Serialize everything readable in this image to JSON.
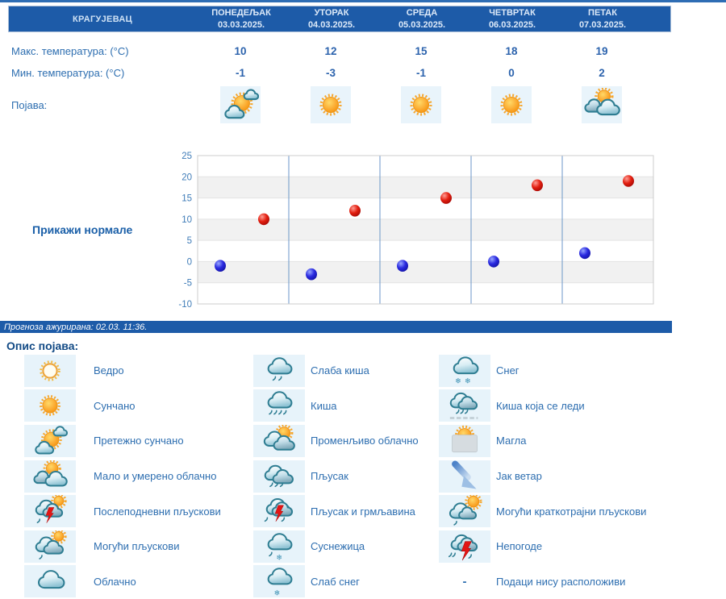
{
  "colors": {
    "header_bg": "#1d5ba8",
    "top_line": "#2e6db4",
    "text_blue": "#2d6eb0",
    "link_blue": "#1a5fa8",
    "legend_title_blue": "#124a85",
    "icon_box_bg": "#e9f4fb",
    "legend_icon_bg": "#e7f3fa",
    "max_dot": "#cc1100",
    "min_dot": "#2222cc",
    "chart_band_gray": "#f1f1f1",
    "chart_divider_blue": "#6b96c8"
  },
  "forecast": {
    "station": "КРАГУЈЕВАЦ",
    "days": [
      {
        "name": "ПОНЕДЕЉАК",
        "date": "03.03.2025."
      },
      {
        "name": "УТОРАК",
        "date": "04.03.2025."
      },
      {
        "name": "СРЕДА",
        "date": "05.03.2025."
      },
      {
        "name": "ЧЕТВРТАК",
        "date": "06.03.2025."
      },
      {
        "name": "ПЕТАК",
        "date": "07.03.2025."
      }
    ],
    "max_label": "Макс. температура: (°C)",
    "min_label": "Мин. температура: (°C)",
    "phenomena_label": "Појава:",
    "max": [
      10,
      12,
      15,
      18,
      19
    ],
    "min": [
      -1,
      -3,
      -1,
      0,
      2
    ],
    "day_icons": [
      "mostly-sunny",
      "sunny",
      "sunny",
      "sunny",
      "partly-cloudy"
    ]
  },
  "normals_link": "Прикажи нормале",
  "updated_text": "Прогноза ажурирана:  02.03. 11:36.",
  "chart_data": {
    "type": "scatter",
    "categories": [
      "03.03.2025.",
      "04.03.2025.",
      "05.03.2025.",
      "06.03.2025.",
      "07.03.2025."
    ],
    "series": [
      {
        "name": "Макс. температура",
        "color": "#cc1100",
        "values": [
          10,
          12,
          15,
          18,
          19
        ]
      },
      {
        "name": "Мин. температура",
        "color": "#2222cc",
        "values": [
          -1,
          -3,
          -1,
          0,
          2
        ]
      }
    ],
    "ylim": [
      -10,
      25
    ],
    "ytick_step": 5,
    "yticks": [
      25,
      20,
      15,
      10,
      5,
      0,
      -5,
      -10
    ],
    "grid": true,
    "day_dividers": true,
    "legend_position": "none",
    "title": "",
    "xlabel": "",
    "ylabel": ""
  },
  "legend": {
    "title": "Опис појава:",
    "columns": [
      [
        {
          "icon": "clear",
          "label": "Ведро"
        },
        {
          "icon": "sunny",
          "label": "Сунчано"
        },
        {
          "icon": "mostly-sunny",
          "label": "Претежно сунчано"
        },
        {
          "icon": "partly-cloudy",
          "label": "Мало и умерено облачно"
        },
        {
          "icon": "afternoon-showers",
          "label": "Послеподневни пљускови"
        },
        {
          "icon": "possible-showers",
          "label": "Могући пљускови"
        },
        {
          "icon": "cloudy",
          "label": "Облачно"
        }
      ],
      [
        {
          "icon": "light-rain",
          "label": "Слаба киша"
        },
        {
          "icon": "rain",
          "label": "Киша"
        },
        {
          "icon": "variable-cloudy",
          "label": "Променљиво облачно"
        },
        {
          "icon": "shower",
          "label": "Пљусак"
        },
        {
          "icon": "shower-thunder",
          "label": "Пљусак и грмљавина"
        },
        {
          "icon": "sleet",
          "label": "Суснежица"
        },
        {
          "icon": "light-snow",
          "label": "Слаб снег"
        }
      ],
      [
        {
          "icon": "snow",
          "label": "Снег"
        },
        {
          "icon": "freezing-rain",
          "label": "Киша која се леди"
        },
        {
          "icon": "fog",
          "label": "Магла"
        },
        {
          "icon": "strong-wind",
          "label": "Јак ветар"
        },
        {
          "icon": "possible-brief-showers",
          "label": "Могући краткотрајни пљускови"
        },
        {
          "icon": "storms",
          "label": "Непогоде"
        },
        {
          "icon": "dash",
          "label": "Подаци нису расположиви"
        }
      ]
    ]
  }
}
